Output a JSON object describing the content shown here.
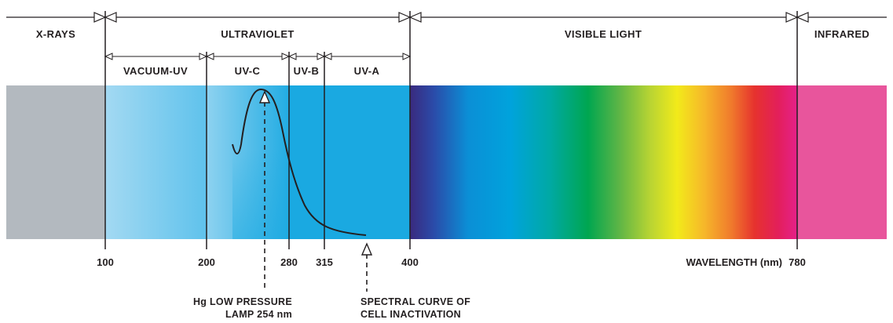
{
  "bands": [
    {
      "key": "xrays",
      "label": "X-RAYS"
    },
    {
      "key": "ultraviolet",
      "label": "ULTRAVIOLET"
    },
    {
      "key": "visible",
      "label": "VISIBLE LIGHT"
    },
    {
      "key": "infrared",
      "label": "INFRARED"
    }
  ],
  "subbands": [
    {
      "key": "vacuum",
      "label": "VACUUM-UV"
    },
    {
      "key": "uvc",
      "label": "UV-C"
    },
    {
      "key": "uvb",
      "label": "UV-B"
    },
    {
      "key": "uva",
      "label": "UV-A"
    }
  ],
  "wavelength_ticks": [
    "100",
    "200",
    "280",
    "315",
    "400",
    "780"
  ],
  "axis_label": "WAVELENGTH (nm)",
  "annotations": {
    "lamp": {
      "line1": "Hg LOW PRESSURE",
      "line2": "LAMP 254 nm"
    },
    "curve": {
      "line1": "SPECTRAL CURVE OF",
      "line2": "CELL INACTIVATION"
    }
  },
  "colors": {
    "xrays": "#b3b9bf",
    "uv_light": "#9fd7f1",
    "uv": "#1aa9e1",
    "infrared": "#e8559c",
    "line": "#231f20"
  }
}
